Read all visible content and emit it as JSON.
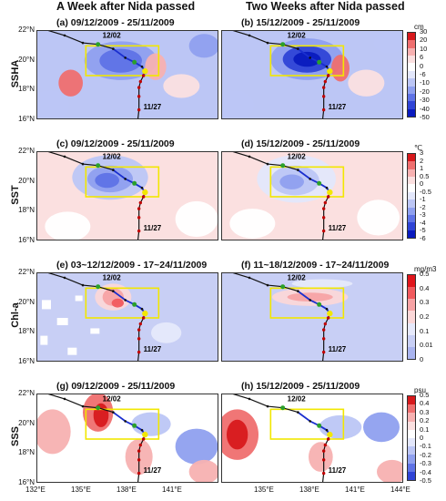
{
  "column_titles": [
    "A Week after Nida passed",
    "Two Weeks after Nida passed"
  ],
  "row_titles": [
    "SSHA",
    "SST",
    "Chl-a",
    "SSS"
  ],
  "chart_data": {
    "type": "heatmap",
    "lat_ticks": [
      "22°N",
      "20°N",
      "18°N",
      "16°N"
    ],
    "lon_ticks": [
      "132°E",
      "135°E",
      "138°E",
      "141°E",
      "144°E"
    ],
    "track_labels": [
      "12/02",
      "11/27"
    ],
    "rows": [
      {
        "variable": "SSHA",
        "unit": "cm",
        "colorbar_ticks": [
          "30",
          "20",
          "10",
          "6",
          "0",
          "-6",
          "-10",
          "-20",
          "-30",
          "-40",
          "-50"
        ],
        "colorbar_colors": [
          "#d7191c",
          "#ef6f6f",
          "#f7b1b1",
          "#fbe0e0",
          "#ffffff",
          "#e3e7fb",
          "#bcc6f5",
          "#8fa0ef",
          "#5f73e6",
          "#2f44d6",
          "#0a1bbf"
        ],
        "panels": [
          {
            "label": "(a) 09/12/2009 - 25/11/2009"
          },
          {
            "label": "(b) 15/12/2009 - 25/11/2009"
          }
        ]
      },
      {
        "variable": "SST",
        "unit": "℃",
        "colorbar_ticks": [
          "3",
          "2",
          "1",
          "0.5",
          "0",
          "-0.5",
          "-1",
          "-2",
          "-3",
          "-4",
          "-5",
          "-6"
        ],
        "colorbar_colors": [
          "#d7191c",
          "#ef6f6f",
          "#f7b1b1",
          "#fbe0e0",
          "#ffffff",
          "#e3e7fb",
          "#bcc6f5",
          "#8fa0ef",
          "#5f73e6",
          "#2f44d6",
          "#0a1bbf"
        ],
        "panels": [
          {
            "label": "(c) 09/12/2009 - 25/11/2009"
          },
          {
            "label": "(d) 15/12/2009 - 25/11/2009"
          }
        ]
      },
      {
        "variable": "Chl-a",
        "unit": "mg/m3",
        "colorbar_ticks": [
          "0.5",
          "0.4",
          "0.3",
          "0.2",
          "0.1",
          "0.01",
          "0"
        ],
        "colorbar_colors": [
          "#e0161c",
          "#f15a5e",
          "#f7a3a5",
          "#fbd7d8",
          "#e6e9fb",
          "#c8cff5",
          "#a9b4ef"
        ],
        "panels": [
          {
            "label": "(e) 03~12/12/2009 - 17~24/11/2009"
          },
          {
            "label": "(f) 11~18/12/2009 - 17~24/11/2009"
          }
        ]
      },
      {
        "variable": "SSS",
        "unit": "psu",
        "colorbar_ticks": [
          "0.5",
          "0.4",
          "0.3",
          "0.2",
          "0.1",
          "0",
          "-0.1",
          "-0.2",
          "-0.3",
          "-0.4",
          "-0.5"
        ],
        "colorbar_colors": [
          "#d7191c",
          "#ef6f6f",
          "#f7b1b1",
          "#fbe0e0",
          "#ffffff",
          "#e3e7fb",
          "#bcc6f5",
          "#8fa0ef",
          "#5f73e6",
          "#2f44d6"
        ],
        "panels": [
          {
            "label": "(g) 09/12/2009 - 25/11/2009"
          },
          {
            "label": "(h) 15/12/2009 - 25/11/2009"
          }
        ]
      }
    ],
    "track": [
      [
        132.5,
        22.1
      ],
      [
        133.8,
        21.7
      ],
      [
        135.0,
        21.2
      ],
      [
        136.0,
        21.1
      ],
      [
        137.0,
        20.8
      ],
      [
        137.8,
        20.2
      ],
      [
        138.4,
        19.9
      ],
      [
        138.9,
        19.6
      ],
      [
        139.1,
        19.3
      ],
      [
        139.0,
        19.0
      ],
      [
        138.8,
        18.6
      ],
      [
        138.7,
        18.2
      ],
      [
        138.7,
        17.6
      ],
      [
        138.7,
        16.7
      ],
      [
        138.6,
        15.8
      ]
    ],
    "study_box": {
      "lon_min": 135.2,
      "lon_max": 140.0,
      "lat_min": 19.0,
      "lat_max": 21.0
    }
  }
}
